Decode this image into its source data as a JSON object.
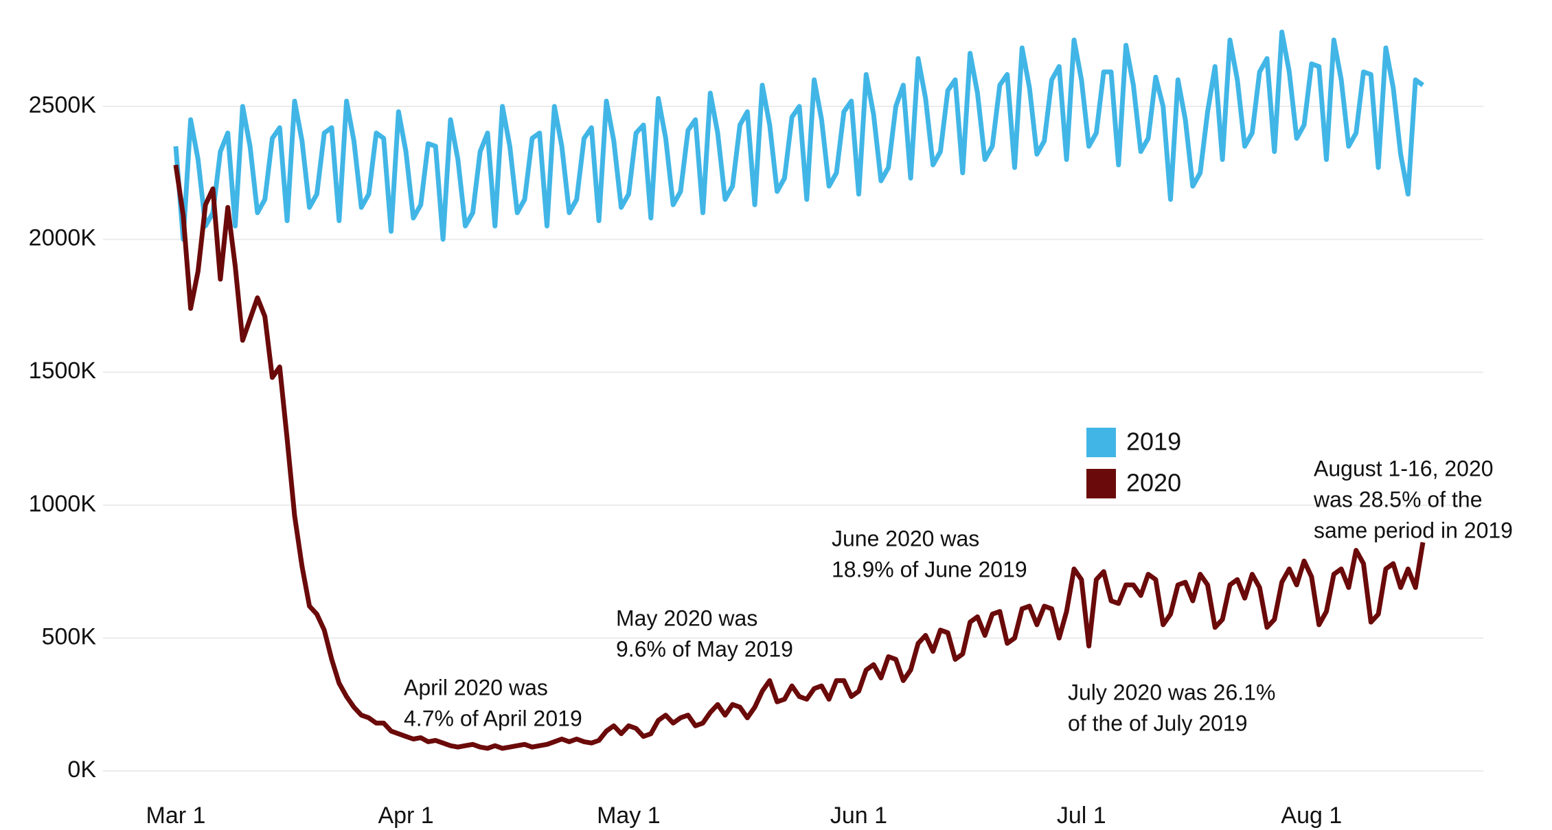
{
  "chart_data": {
    "type": "line",
    "x": [
      "Mar 1",
      "Mar 2",
      "Mar 3",
      "Mar 4",
      "Mar 5",
      "Mar 6",
      "Mar 7",
      "Mar 8",
      "Mar 9",
      "Mar 10",
      "Mar 11",
      "Mar 12",
      "Mar 13",
      "Mar 14",
      "Mar 15",
      "Mar 16",
      "Mar 17",
      "Mar 18",
      "Mar 19",
      "Mar 20",
      "Mar 21",
      "Mar 22",
      "Mar 23",
      "Mar 24",
      "Mar 25",
      "Mar 26",
      "Mar 27",
      "Mar 28",
      "Mar 29",
      "Mar 30",
      "Mar 31",
      "Apr 1",
      "Apr 2",
      "Apr 3",
      "Apr 4",
      "Apr 5",
      "Apr 6",
      "Apr 7",
      "Apr 8",
      "Apr 9",
      "Apr 10",
      "Apr 11",
      "Apr 12",
      "Apr 13",
      "Apr 14",
      "Apr 15",
      "Apr 16",
      "Apr 17",
      "Apr 18",
      "Apr 19",
      "Apr 20",
      "Apr 21",
      "Apr 22",
      "Apr 23",
      "Apr 24",
      "Apr 25",
      "Apr 26",
      "Apr 27",
      "Apr 28",
      "Apr 29",
      "Apr 30",
      "May 1",
      "May 2",
      "May 3",
      "May 4",
      "May 5",
      "May 6",
      "May 7",
      "May 8",
      "May 9",
      "May 10",
      "May 11",
      "May 12",
      "May 13",
      "May 14",
      "May 15",
      "May 16",
      "May 17",
      "May 18",
      "May 19",
      "May 20",
      "May 21",
      "May 22",
      "May 23",
      "May 24",
      "May 25",
      "May 26",
      "May 27",
      "May 28",
      "May 29",
      "May 30",
      "May 31",
      "Jun 1",
      "Jun 2",
      "Jun 3",
      "Jun 4",
      "Jun 5",
      "Jun 6",
      "Jun 7",
      "Jun 8",
      "Jun 9",
      "Jun 10",
      "Jun 11",
      "Jun 12",
      "Jun 13",
      "Jun 14",
      "Jun 15",
      "Jun 16",
      "Jun 17",
      "Jun 18",
      "Jun 19",
      "Jun 20",
      "Jun 21",
      "Jun 22",
      "Jun 23",
      "Jun 24",
      "Jun 25",
      "Jun 26",
      "Jun 27",
      "Jun 28",
      "Jun 29",
      "Jun 30",
      "Jul 1",
      "Jul 2",
      "Jul 3",
      "Jul 4",
      "Jul 5",
      "Jul 6",
      "Jul 7",
      "Jul 8",
      "Jul 9",
      "Jul 10",
      "Jul 11",
      "Jul 12",
      "Jul 13",
      "Jul 14",
      "Jul 15",
      "Jul 16",
      "Jul 17",
      "Jul 18",
      "Jul 19",
      "Jul 20",
      "Jul 21",
      "Jul 22",
      "Jul 23",
      "Jul 24",
      "Jul 25",
      "Jul 26",
      "Jul 27",
      "Jul 28",
      "Jul 29",
      "Jul 30",
      "Jul 31",
      "Aug 1",
      "Aug 2",
      "Aug 3",
      "Aug 4",
      "Aug 5",
      "Aug 6",
      "Aug 7",
      "Aug 8",
      "Aug 9",
      "Aug 10",
      "Aug 11",
      "Aug 12",
      "Aug 13",
      "Aug 14",
      "Aug 15",
      "Aug 16"
    ],
    "xticks": [
      "Mar 1",
      "Apr 1",
      "May 1",
      "Jun 1",
      "Jul 1",
      "Aug 1"
    ],
    "series": [
      {
        "name": "2019",
        "color": "#41b6e6",
        "values": [
          2350,
          2000,
          2450,
          2300,
          2050,
          2100,
          2330,
          2400,
          2050,
          2500,
          2350,
          2100,
          2150,
          2380,
          2420,
          2070,
          2520,
          2370,
          2120,
          2170,
          2400,
          2420,
          2070,
          2520,
          2370,
          2120,
          2170,
          2400,
          2380,
          2030,
          2480,
          2330,
          2080,
          2130,
          2360,
          2350,
          2000,
          2450,
          2300,
          2050,
          2100,
          2330,
          2400,
          2050,
          2500,
          2350,
          2100,
          2150,
          2380,
          2400,
          2050,
          2500,
          2350,
          2100,
          2150,
          2380,
          2420,
          2070,
          2520,
          2370,
          2120,
          2170,
          2400,
          2430,
          2080,
          2530,
          2380,
          2130,
          2180,
          2410,
          2450,
          2100,
          2550,
          2400,
          2150,
          2200,
          2430,
          2480,
          2130,
          2580,
          2430,
          2180,
          2230,
          2460,
          2500,
          2150,
          2600,
          2450,
          2200,
          2250,
          2480,
          2520,
          2170,
          2620,
          2470,
          2220,
          2270,
          2500,
          2580,
          2230,
          2680,
          2530,
          2280,
          2330,
          2560,
          2600,
          2250,
          2700,
          2550,
          2300,
          2350,
          2580,
          2620,
          2270,
          2720,
          2570,
          2320,
          2370,
          2600,
          2650,
          2300,
          2750,
          2600,
          2350,
          2400,
          2630,
          2630,
          2280,
          2730,
          2580,
          2330,
          2380,
          2610,
          2500,
          2150,
          2600,
          2450,
          2200,
          2250,
          2480,
          2650,
          2300,
          2750,
          2600,
          2350,
          2400,
          2630,
          2680,
          2330,
          2780,
          2630,
          2380,
          2430,
          2660,
          2650,
          2300,
          2750,
          2600,
          2350,
          2400,
          2630,
          2620,
          2270,
          2720,
          2570,
          2320,
          2170,
          2600,
          2580
        ]
      },
      {
        "name": "2020",
        "color": "#6b0a0a",
        "values": [
          2280,
          2090,
          1740,
          1880,
          2130,
          2190,
          1850,
          2120,
          1900,
          1620,
          1700,
          1780,
          1710,
          1480,
          1520,
          1250,
          960,
          770,
          620,
          590,
          530,
          420,
          330,
          280,
          240,
          210,
          200,
          180,
          180,
          150,
          140,
          130,
          120,
          125,
          110,
          115,
          105,
          95,
          90,
          95,
          100,
          90,
          85,
          95,
          85,
          90,
          95,
          100,
          90,
          95,
          100,
          110,
          120,
          110,
          120,
          110,
          105,
          115,
          150,
          170,
          140,
          170,
          160,
          130,
          140,
          190,
          210,
          180,
          200,
          210,
          170,
          180,
          220,
          250,
          210,
          250,
          240,
          200,
          240,
          300,
          340,
          260,
          270,
          320,
          280,
          270,
          310,
          320,
          270,
          340,
          340,
          280,
          300,
          380,
          400,
          350,
          430,
          420,
          340,
          380,
          480,
          510,
          450,
          530,
          520,
          420,
          440,
          560,
          580,
          510,
          590,
          600,
          480,
          500,
          610,
          620,
          550,
          620,
          610,
          500,
          600,
          760,
          720,
          470,
          720,
          750,
          640,
          630,
          700,
          700,
          660,
          740,
          720,
          550,
          590,
          700,
          710,
          640,
          740,
          700,
          540,
          570,
          700,
          720,
          650,
          740,
          690,
          540,
          570,
          710,
          760,
          700,
          790,
          730,
          550,
          600,
          740,
          760,
          690,
          830,
          780,
          560,
          590,
          760,
          780,
          690,
          760,
          690,
          860
        ]
      }
    ],
    "ylim": [
      0,
      2750
    ],
    "yticks": [
      {
        "value": 0,
        "label": "0K"
      },
      {
        "value": 500,
        "label": "500K"
      },
      {
        "value": 1000,
        "label": "1000K"
      },
      {
        "value": 1500,
        "label": "1500K"
      },
      {
        "value": 2000,
        "label": "2000K"
      },
      {
        "value": 2500,
        "label": "2500K"
      }
    ],
    "grid": true,
    "legend": "right",
    "annotations": [
      [
        "April 2020 was",
        "4.7% of April 2019"
      ],
      [
        "May 2020 was",
        "9.6% of May 2019"
      ],
      [
        "June 2020 was",
        "18.9% of June 2019"
      ],
      [
        "July 2020 was 26.1%",
        "of the of July 2019"
      ],
      [
        "August 1-16, 2020",
        "was 28.5% of the",
        "same period in 2019"
      ]
    ]
  }
}
